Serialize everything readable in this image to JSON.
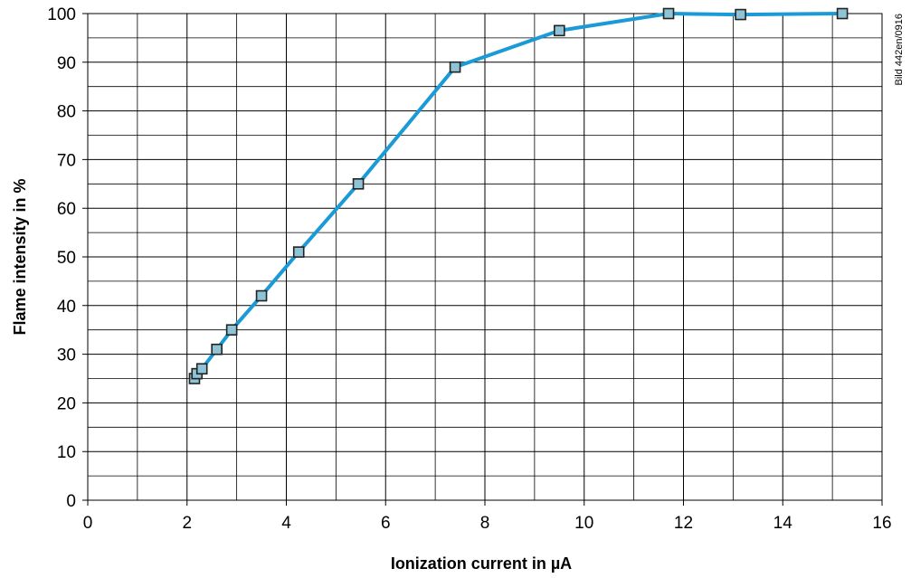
{
  "chart_data": {
    "type": "line",
    "title": "",
    "xlabel": "Ionization current in µA",
    "ylabel": "Flame intensity in %",
    "side_note": "Bild 442en/0916",
    "xlim": [
      0,
      16
    ],
    "ylim": [
      0,
      100
    ],
    "x_ticks": [
      0,
      2,
      4,
      6,
      8,
      10,
      12,
      14,
      16
    ],
    "y_ticks": [
      0,
      10,
      20,
      30,
      40,
      50,
      60,
      70,
      80,
      90,
      100
    ],
    "x_minor_step": 1,
    "y_minor_step": 5,
    "grid": true,
    "legend": "none",
    "series": [
      {
        "color": "#1a9ad6",
        "marker_fill": "#8fc3d6",
        "x": [
          2.15,
          2.2,
          2.3,
          2.6,
          2.9,
          3.5,
          4.25,
          5.45,
          7.4,
          9.5,
          11.7,
          13.15,
          15.2
        ],
        "y": [
          25,
          26,
          27,
          31,
          35,
          42,
          51,
          65,
          89,
          96.5,
          100,
          99.8,
          100
        ]
      }
    ]
  }
}
